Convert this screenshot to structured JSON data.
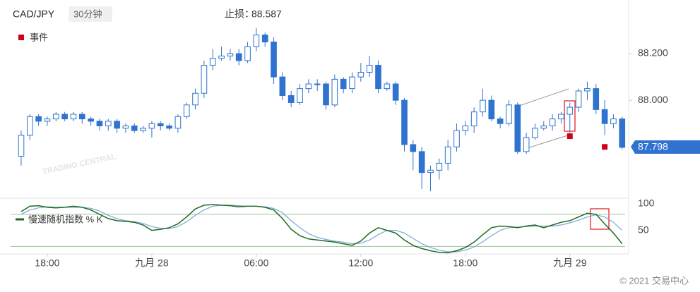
{
  "chart_data": [
    {
      "type": "candlestick",
      "title": "CAD/JPY",
      "timeframe": "30分钟",
      "stop_loss_label": "止损：",
      "stop_loss": 88.587,
      "watermark": "TRADING CENTRAL",
      "up_color": "#ffffff",
      "down_color": "#2f72d0",
      "edge_color": "#2f72d0",
      "open": [
        87.76,
        87.85,
        87.93,
        87.91,
        87.92,
        87.94,
        87.92,
        87.94,
        87.92,
        87.91,
        87.89,
        87.91,
        87.88,
        87.89,
        87.87,
        87.88,
        87.9,
        87.89,
        87.88,
        87.93,
        87.98,
        88.03,
        88.15,
        88.18,
        88.19,
        88.2,
        88.17,
        88.23,
        88.28,
        88.25,
        88.1,
        88.02,
        87.99,
        88.05,
        88.07,
        88.07,
        87.98,
        88.09,
        88.05,
        88.1,
        88.12,
        88.15,
        88.05,
        88.07,
        88.0,
        87.81,
        87.78,
        87.69,
        87.7,
        87.73,
        87.8,
        87.87,
        87.89,
        87.95,
        88.0,
        87.92,
        87.9,
        87.98,
        87.78,
        87.84,
        87.88,
        87.89,
        87.92,
        87.94,
        87.97,
        88.04,
        88.05,
        87.96,
        87.9,
        87.92
      ],
      "high": [
        87.87,
        87.94,
        87.94,
        87.93,
        87.95,
        87.95,
        87.95,
        87.95,
        87.93,
        87.92,
        87.92,
        87.92,
        87.9,
        87.9,
        87.89,
        87.91,
        87.91,
        87.9,
        87.94,
        87.99,
        88.05,
        88.17,
        88.22,
        88.23,
        88.22,
        88.22,
        88.25,
        88.31,
        88.29,
        88.27,
        88.12,
        88.04,
        88.07,
        88.09,
        88.09,
        88.08,
        88.11,
        88.1,
        88.12,
        88.16,
        88.19,
        88.17,
        88.08,
        88.08,
        88.01,
        87.83,
        87.8,
        87.72,
        87.75,
        87.83,
        87.9,
        87.91,
        87.97,
        88.05,
        88.02,
        87.93,
        88.0,
        87.99,
        87.86,
        87.9,
        87.91,
        87.94,
        87.95,
        87.99,
        88.05,
        88.08,
        88.07,
        88.0,
        87.94,
        87.93
      ],
      "low": [
        87.72,
        87.83,
        87.89,
        87.89,
        87.91,
        87.91,
        87.91,
        87.9,
        87.89,
        87.87,
        87.87,
        87.86,
        87.86,
        87.86,
        87.86,
        87.84,
        87.87,
        87.87,
        87.86,
        87.92,
        87.96,
        88.01,
        88.13,
        88.17,
        88.17,
        88.15,
        88.16,
        88.21,
        88.23,
        88.07,
        88.0,
        87.97,
        87.98,
        88.03,
        88.04,
        87.96,
        87.97,
        88.03,
        88.03,
        88.08,
        88.1,
        88.03,
        88.04,
        87.98,
        87.78,
        87.7,
        87.62,
        87.61,
        87.66,
        87.7,
        87.78,
        87.85,
        87.86,
        87.93,
        87.91,
        87.88,
        87.89,
        87.77,
        87.77,
        87.83,
        87.87,
        87.87,
        87.9,
        87.86,
        87.95,
        88.0,
        87.94,
        87.85,
        87.88,
        87.79
      ],
      "close": [
        87.85,
        87.93,
        87.91,
        87.92,
        87.94,
        87.92,
        87.94,
        87.92,
        87.91,
        87.89,
        87.91,
        87.88,
        87.89,
        87.87,
        87.88,
        87.9,
        87.89,
        87.88,
        87.93,
        87.98,
        88.03,
        88.15,
        88.18,
        88.19,
        88.2,
        88.17,
        88.23,
        88.28,
        88.25,
        88.1,
        88.02,
        87.99,
        88.05,
        88.07,
        88.07,
        87.98,
        88.09,
        88.05,
        88.1,
        88.12,
        88.15,
        88.05,
        88.07,
        88.0,
        87.81,
        87.78,
        87.69,
        87.7,
        87.73,
        87.8,
        87.87,
        87.89,
        87.95,
        88.0,
        87.92,
        87.9,
        87.98,
        87.78,
        87.84,
        87.88,
        87.89,
        87.92,
        87.94,
        87.97,
        88.04,
        88.05,
        87.96,
        87.9,
        87.92,
        87.798
      ],
      "last_price": 87.798,
      "events": {
        "name": "事件",
        "color": "#d0021b",
        "x": [
          63,
          67
        ],
        "y": [
          87.846,
          87.8
        ]
      },
      "xlim": [
        -2.43,
        69.75
      ],
      "xticks": [
        {
          "value": 3,
          "label": "18:00"
        },
        {
          "value": 15,
          "label": "九月 28"
        },
        {
          "value": 27,
          "label": "06:00"
        },
        {
          "value": 39,
          "label": "12:00"
        },
        {
          "value": 51,
          "label": "18:00"
        },
        {
          "value": 63,
          "label": "九月 29"
        }
      ],
      "ylim": [
        87.58,
        88.43
      ],
      "yticks": [
        {
          "value": 88.2,
          "label": "88.200"
        },
        {
          "value": 88.0,
          "label": "88.000"
        }
      ]
    },
    {
      "type": "line",
      "series": [
        {
          "name": "慢速随机指数 % K",
          "color": "#1e6b1e",
          "values": [
            85,
            95,
            96,
            93,
            92,
            93,
            95,
            93,
            88,
            80,
            72,
            68,
            67,
            65,
            60,
            50,
            52,
            55,
            62,
            75,
            90,
            97,
            98,
            97,
            96,
            94,
            95,
            95,
            93,
            88,
            72,
            52,
            40,
            34,
            32,
            30,
            28,
            25,
            22,
            30,
            45,
            55,
            50,
            45,
            32,
            22,
            16,
            12,
            9,
            8,
            12,
            18,
            28,
            42,
            55,
            58,
            57,
            55,
            58,
            60,
            55,
            60,
            65,
            68,
            75,
            82,
            80,
            62,
            45,
            25
          ]
        },
        {
          "color": "#7aa7d8",
          "values": [
            80,
            88,
            92,
            94,
            93,
            93,
            93,
            93,
            91,
            86,
            78,
            72,
            68,
            66,
            63,
            57,
            54,
            53,
            57,
            66,
            78,
            88,
            95,
            97,
            97,
            96,
            95,
            95,
            94,
            91,
            83,
            68,
            55,
            44,
            37,
            33,
            30,
            28,
            25,
            26,
            32,
            42,
            50,
            50,
            45,
            35,
            25,
            18,
            13,
            10,
            10,
            13,
            19,
            29,
            40,
            50,
            55,
            56,
            57,
            58,
            58,
            58,
            60,
            64,
            69,
            75,
            79,
            75,
            65,
            50
          ]
        }
      ],
      "levels": [
        80,
        20
      ],
      "level_color": "#9cc79c",
      "ylim": [
        10,
        110
      ],
      "yticks": [
        100,
        50
      ]
    }
  ],
  "footer": "© 2021 交易中心"
}
